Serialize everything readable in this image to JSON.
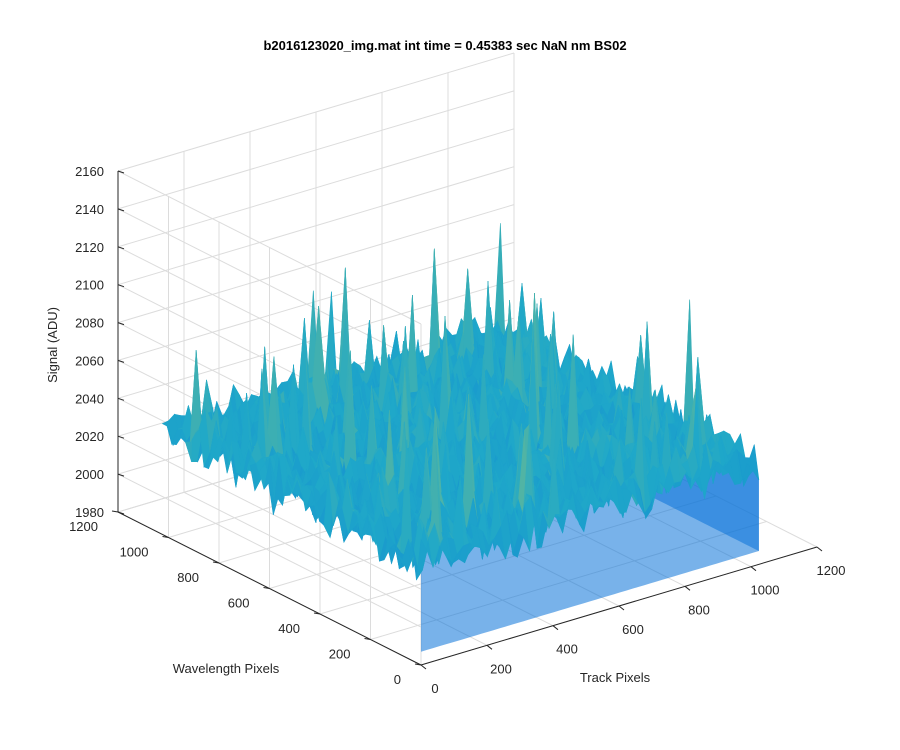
{
  "chart_data": {
    "type": "surface",
    "title": "b2016123020_img.mat int time = 0.45383 sec  NaN nm BS02",
    "xlabel": "Track Pixels",
    "ylabel": "Wavelength Pixels",
    "zlabel": "Signal (ADU)",
    "xlim": [
      0,
      1200
    ],
    "ylim": [
      0,
      1200
    ],
    "zlim": [
      1980,
      2160
    ],
    "x_ticks": [
      "0",
      "200",
      "400",
      "600",
      "800",
      "1000",
      "1200"
    ],
    "y_ticks": [
      "0",
      "200",
      "400",
      "600",
      "800",
      "1000",
      "1200"
    ],
    "z_ticks": [
      "1980",
      "2000",
      "2020",
      "2040",
      "2060",
      "2080",
      "2100",
      "2120",
      "2140",
      "2160"
    ],
    "grid": true,
    "colormap": "parula",
    "surface": {
      "x_range": [
        0,
        1024
      ],
      "y_range": [
        0,
        1024
      ],
      "z_mean": 2035,
      "z_min": 1985,
      "z_max": 2145
    },
    "colors": {
      "axis": "#262626",
      "grid": "#dcdcdc",
      "low": "#0a72d9",
      "mid": "#1fa8c9",
      "high": "#b5cc5a"
    }
  }
}
